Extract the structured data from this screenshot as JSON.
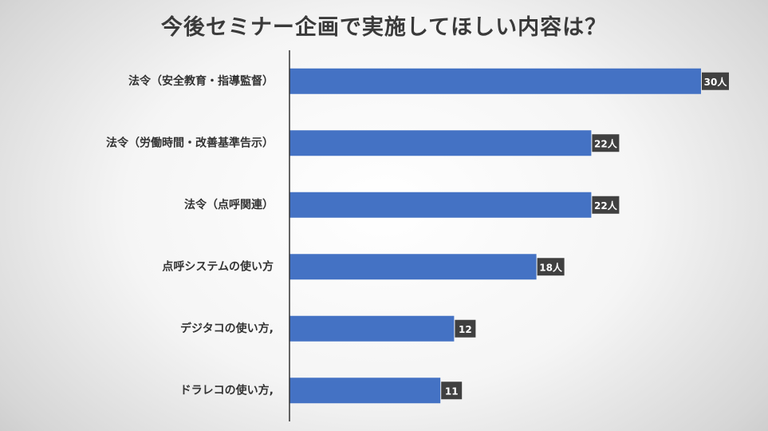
{
  "chart_data": {
    "type": "bar",
    "orientation": "horizontal",
    "title": "今後セミナー企画で実施してほしい内容は？",
    "categories": [
      "法令（安全教育・指導監督）",
      "法令（労働時間・改善基準告示）",
      "法令（点呼関連）",
      "点呼システムの使い方",
      "デジタコの使い方,",
      "ドラレコの使い方,"
    ],
    "values": [
      30,
      22,
      22,
      18,
      12,
      11
    ],
    "data_labels": [
      "30人",
      "22人",
      "22人",
      "18人",
      "12",
      "11"
    ],
    "xlim": [
      0,
      30
    ],
    "grid": false,
    "legend": "none",
    "colors": {
      "bar": "#4472C4",
      "label_box": "#404040",
      "label_text": "#FFFFFF",
      "axis": "#333333"
    }
  }
}
